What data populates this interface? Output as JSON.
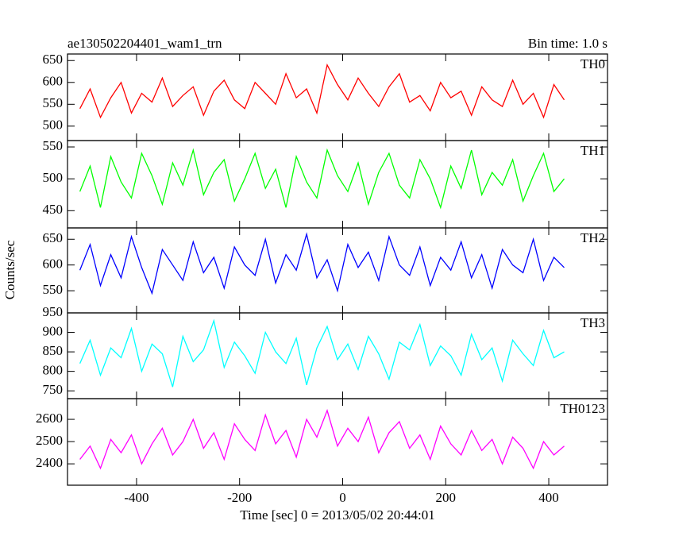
{
  "chart_data": [
    {
      "type": "line",
      "title": "ae130502204401_wam1_trn",
      "subtitle": "Bin time: 1.0 s",
      "label": "TH0",
      "color": "#ff0000",
      "x": [
        -510,
        -490,
        -470,
        -450,
        -430,
        -410,
        -390,
        -370,
        -350,
        -330,
        -310,
        -290,
        -270,
        -250,
        -230,
        -210,
        -190,
        -170,
        -150,
        -130,
        -110,
        -90,
        -70,
        -50,
        -30,
        -10,
        10,
        30,
        50,
        70,
        90,
        110,
        130,
        150,
        170,
        190,
        210,
        230,
        250,
        270,
        290,
        310,
        330,
        350,
        370,
        390,
        410,
        430
      ],
      "values": [
        540,
        585,
        520,
        565,
        600,
        530,
        575,
        555,
        610,
        545,
        570,
        590,
        525,
        580,
        605,
        560,
        540,
        600,
        575,
        550,
        620,
        565,
        585,
        530,
        640,
        595,
        560,
        610,
        575,
        545,
        590,
        620,
        555,
        570,
        535,
        600,
        565,
        580,
        525,
        590,
        560,
        545,
        605,
        550,
        575,
        520,
        595,
        560
      ],
      "xlim": [
        -534,
        514
      ],
      "xticks": [
        -400,
        -200,
        0,
        200,
        400
      ],
      "ylim": [
        467,
        665
      ],
      "yticks": [
        500,
        550,
        600,
        650
      ]
    },
    {
      "type": "line",
      "label": "TH1",
      "color": "#00ff00",
      "x": [
        -510,
        -490,
        -470,
        -450,
        -430,
        -410,
        -390,
        -370,
        -350,
        -330,
        -310,
        -290,
        -270,
        -250,
        -230,
        -210,
        -190,
        -170,
        -150,
        -130,
        -110,
        -90,
        -70,
        -50,
        -30,
        -10,
        10,
        30,
        50,
        70,
        90,
        110,
        130,
        150,
        170,
        190,
        210,
        230,
        250,
        270,
        290,
        310,
        330,
        350,
        370,
        390,
        410,
        430
      ],
      "values": [
        480,
        520,
        455,
        535,
        495,
        470,
        540,
        505,
        460,
        525,
        490,
        545,
        475,
        510,
        530,
        465,
        500,
        540,
        485,
        515,
        455,
        535,
        495,
        470,
        545,
        505,
        480,
        525,
        460,
        510,
        540,
        490,
        470,
        530,
        500,
        455,
        520,
        485,
        545,
        475,
        510,
        490,
        530,
        465,
        505,
        540,
        480,
        500
      ],
      "xlim": [
        -534,
        514
      ],
      "xticks": [
        -400,
        -200,
        0,
        200,
        400
      ],
      "ylim": [
        423,
        560
      ],
      "yticks": [
        450,
        500,
        550
      ]
    },
    {
      "type": "line",
      "label": "TH2",
      "ylabel": "Counts/sec",
      "color": "#0000ff",
      "x": [
        -510,
        -490,
        -470,
        -450,
        -430,
        -410,
        -390,
        -370,
        -350,
        -330,
        -310,
        -290,
        -270,
        -250,
        -230,
        -210,
        -190,
        -170,
        -150,
        -130,
        -110,
        -90,
        -70,
        -50,
        -30,
        -10,
        10,
        30,
        50,
        70,
        90,
        110,
        130,
        150,
        170,
        190,
        210,
        230,
        250,
        270,
        290,
        310,
        330,
        350,
        370,
        390,
        410,
        430
      ],
      "values": [
        590,
        640,
        560,
        620,
        575,
        655,
        595,
        545,
        630,
        600,
        570,
        645,
        585,
        615,
        555,
        635,
        600,
        580,
        650,
        565,
        620,
        590,
        660,
        575,
        610,
        550,
        640,
        595,
        625,
        570,
        655,
        600,
        580,
        635,
        560,
        615,
        590,
        645,
        575,
        620,
        555,
        630,
        600,
        585,
        650,
        570,
        615,
        595
      ],
      "xlim": [
        -534,
        514
      ],
      "xticks": [
        -400,
        -200,
        0,
        200,
        400
      ],
      "ylim": [
        507,
        672
      ],
      "yticks": [
        550,
        600,
        650
      ]
    },
    {
      "type": "line",
      "label": "TH3",
      "color": "#00ffff",
      "x": [
        -510,
        -490,
        -470,
        -450,
        -430,
        -410,
        -390,
        -370,
        -350,
        -330,
        -310,
        -290,
        -270,
        -250,
        -230,
        -210,
        -190,
        -170,
        -150,
        -130,
        -110,
        -90,
        -70,
        -50,
        -30,
        -10,
        10,
        30,
        50,
        70,
        90,
        110,
        130,
        150,
        170,
        190,
        210,
        230,
        250,
        270,
        290,
        310,
        330,
        350,
        370,
        390,
        410,
        430
      ],
      "values": [
        820,
        880,
        790,
        860,
        835,
        910,
        800,
        870,
        845,
        760,
        890,
        825,
        855,
        930,
        810,
        875,
        840,
        795,
        900,
        850,
        820,
        885,
        765,
        860,
        915,
        830,
        870,
        805,
        890,
        845,
        780,
        875,
        855,
        920,
        815,
        865,
        840,
        790,
        895,
        830,
        860,
        775,
        880,
        845,
        815,
        905,
        835,
        850
      ],
      "xlim": [
        -534,
        514
      ],
      "xticks": [
        -400,
        -200,
        0,
        200,
        400
      ],
      "ylim": [
        730,
        950
      ],
      "yticks": [
        750,
        800,
        850,
        900,
        950
      ]
    },
    {
      "type": "line",
      "label": "TH0123",
      "xlabel": "Time [sec] 0 = 2013/05/02 20:44:01",
      "color": "#ff00ff",
      "x": [
        -510,
        -490,
        -470,
        -450,
        -430,
        -410,
        -390,
        -370,
        -350,
        -330,
        -310,
        -290,
        -270,
        -250,
        -230,
        -210,
        -190,
        -170,
        -150,
        -130,
        -110,
        -90,
        -70,
        -50,
        -30,
        -10,
        10,
        30,
        50,
        70,
        90,
        110,
        130,
        150,
        170,
        190,
        210,
        230,
        250,
        270,
        290,
        310,
        330,
        350,
        370,
        390,
        410,
        430
      ],
      "values": [
        2420,
        2480,
        2380,
        2510,
        2450,
        2530,
        2400,
        2490,
        2560,
        2440,
        2500,
        2600,
        2470,
        2540,
        2420,
        2580,
        2510,
        2460,
        2620,
        2490,
        2550,
        2430,
        2600,
        2520,
        2640,
        2480,
        2560,
        2500,
        2610,
        2450,
        2540,
        2590,
        2470,
        2530,
        2420,
        2570,
        2490,
        2440,
        2550,
        2460,
        2510,
        2400,
        2520,
        2470,
        2380,
        2500,
        2440,
        2480
      ],
      "xlim": [
        -534,
        514
      ],
      "xticks": [
        -400,
        -200,
        0,
        200,
        400
      ],
      "ylim": [
        2304,
        2693
      ],
      "yticks": [
        2400,
        2500,
        2600
      ]
    }
  ]
}
